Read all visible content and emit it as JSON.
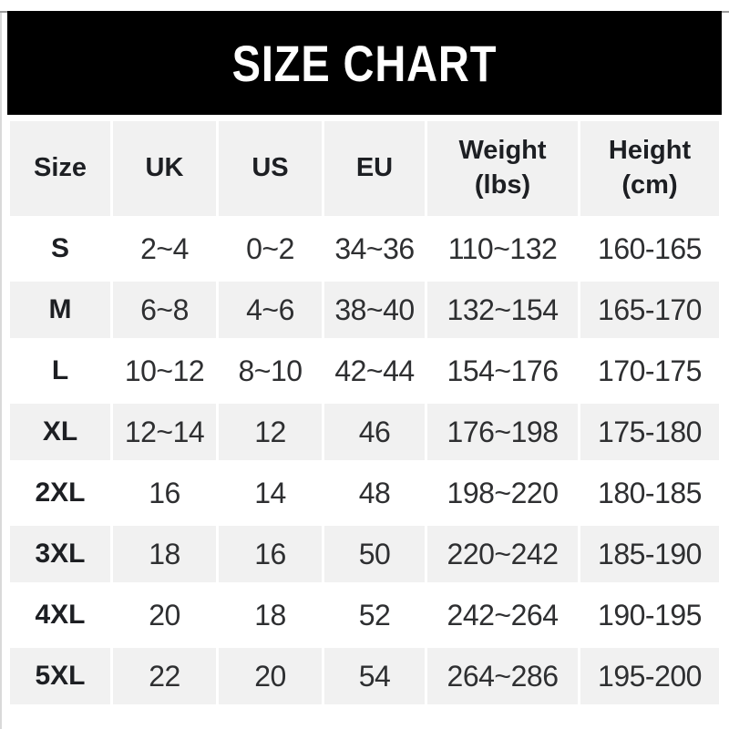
{
  "colors": {
    "banner_bg": "#000000",
    "banner_text": "#ffffff",
    "row_alt_bg": "#f1f1f1",
    "header_text": "#1d1f23",
    "cell_text": "#2e2f31"
  },
  "chart_data": {
    "type": "table",
    "title": "SIZE CHART",
    "columns": [
      "Size",
      "UK",
      "US",
      "EU",
      "Weight (lbs)",
      "Height (cm)"
    ],
    "rows": [
      [
        "S",
        "2~4",
        "0~2",
        "34~36",
        "110~132",
        "160-165"
      ],
      [
        "M",
        "6~8",
        "4~6",
        "38~40",
        "132~154",
        "165-170"
      ],
      [
        "L",
        "10~12",
        "8~10",
        "42~44",
        "154~176",
        "170-175"
      ],
      [
        "XL",
        "12~14",
        "12",
        "46",
        "176~198",
        "175-180"
      ],
      [
        "2XL",
        "16",
        "14",
        "48",
        "198~220",
        "180-185"
      ],
      [
        "3XL",
        "18",
        "16",
        "50",
        "220~242",
        "185-190"
      ],
      [
        "4XL",
        "20",
        "18",
        "52",
        "242~264",
        "190-195"
      ],
      [
        "5XL",
        "22",
        "20",
        "54",
        "264~286",
        "195-200"
      ]
    ]
  }
}
